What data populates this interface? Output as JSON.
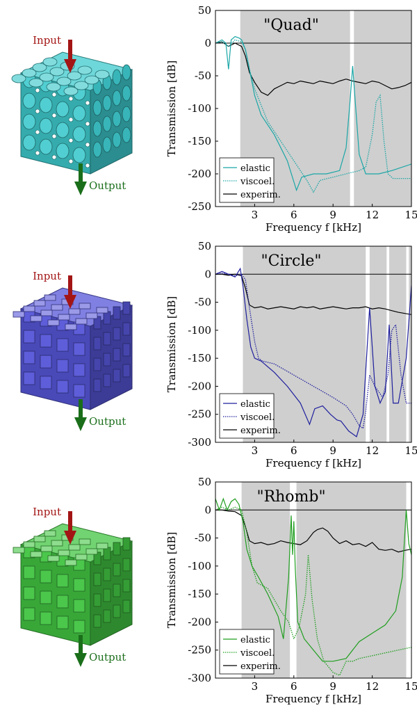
{
  "panels": [
    {
      "lattice": {
        "input_label": "Input",
        "output_label": "Output",
        "color": "#3ec9cc",
        "shape": "spheres"
      },
      "chart_data": {
        "type": "line",
        "title": "\"Quad\"",
        "xlabel": "Frequency f [kHz]",
        "ylabel": "Transmission [dB]",
        "xlim": [
          0,
          15
        ],
        "ylim": [
          -250,
          50
        ],
        "xticks": [
          3,
          6,
          9,
          12,
          15
        ],
        "yticks": [
          50,
          0,
          -50,
          -100,
          -150,
          -200,
          -250
        ],
        "legend_position": "bottom-left",
        "band_regions": [
          [
            1.9,
            10.3
          ],
          [
            10.6,
            15
          ]
        ],
        "series": [
          {
            "name": "elastic",
            "style": "solid",
            "color": "#1aa6a6",
            "x": [
              0,
              0.5,
              0.8,
              1.0,
              1.2,
              1.5,
              1.8,
              2.0,
              2.3,
              2.6,
              3.0,
              3.5,
              4.5,
              5.5,
              6.2,
              6.6,
              7.5,
              8.5,
              9.5,
              10.0,
              10.3,
              10.5,
              10.7,
              11.0,
              11.5,
              12.5,
              13.5,
              15
            ],
            "y": [
              0,
              5,
              0,
              -40,
              5,
              10,
              8,
              5,
              -10,
              -40,
              -80,
              -110,
              -140,
              -180,
              -225,
              -205,
              -200,
              -200,
              -195,
              -160,
              -90,
              -35,
              -90,
              -170,
              -200,
              -200,
              -195,
              -185
            ]
          },
          {
            "name": "viscoel.",
            "style": "dotted",
            "color": "#1aa6a6",
            "x": [
              0,
              0.5,
              1.0,
              1.5,
              2.0,
              2.3,
              2.6,
              3.0,
              4.0,
              5.0,
              6.0,
              7.0,
              7.5,
              8.0,
              9.0,
              10.0,
              11.0,
              11.5,
              12.0,
              12.3,
              12.6,
              12.9,
              13.2,
              13.6,
              14.5,
              15
            ],
            "y": [
              0,
              2,
              -5,
              5,
              2,
              -10,
              -40,
              -70,
              -120,
              -150,
              -180,
              -210,
              -228,
              -210,
              -205,
              -200,
              -195,
              -190,
              -140,
              -90,
              -80,
              -150,
              -200,
              -207,
              -207,
              -207
            ]
          },
          {
            "name": "experim.",
            "style": "solid",
            "color": "#000000",
            "x": [
              0,
              0.5,
              1.0,
              1.5,
              2.0,
              2.3,
              2.6,
              3.0,
              3.5,
              4.0,
              4.5,
              5.0,
              5.5,
              6.0,
              6.5,
              7.0,
              7.5,
              8.0,
              8.5,
              9.0,
              9.5,
              10.0,
              10.5,
              11.0,
              11.5,
              12.0,
              12.5,
              13.0,
              13.5,
              14.0,
              14.5,
              15
            ],
            "y": [
              0,
              2,
              -5,
              0,
              -5,
              -20,
              -45,
              -60,
              -75,
              -80,
              -70,
              -65,
              -60,
              -62,
              -58,
              -60,
              -62,
              -58,
              -60,
              -62,
              -58,
              -55,
              -58,
              -60,
              -62,
              -58,
              -60,
              -65,
              -70,
              -68,
              -65,
              -60
            ]
          }
        ]
      }
    },
    {
      "lattice": {
        "input_label": "Input",
        "output_label": "Output",
        "color": "#5656d8",
        "shape": "cubes"
      },
      "chart_data": {
        "type": "line",
        "title": "\"Circle\"",
        "xlabel": "Frequency f [kHz]",
        "ylabel": "Transmission [dB]",
        "xlim": [
          0,
          15
        ],
        "ylim": [
          -300,
          50
        ],
        "xticks": [
          3,
          6,
          9,
          12,
          15
        ],
        "yticks": [
          50,
          0,
          -50,
          -100,
          -150,
          -200,
          -250,
          -300
        ],
        "legend_position": "bottom-left",
        "band_regions": [
          [
            2.1,
            11.5
          ],
          [
            11.8,
            13.1
          ],
          [
            13.3,
            14.6
          ],
          [
            14.8,
            15
          ]
        ],
        "series": [
          {
            "name": "elastic",
            "style": "solid",
            "color": "#1f1f9e",
            "x": [
              0,
              0.5,
              1.0,
              1.5,
              1.9,
              2.1,
              2.4,
              2.7,
              3.0,
              3.5,
              4.5,
              5.5,
              6.5,
              7.2,
              7.6,
              8.2,
              8.8,
              9.3,
              9.6,
              10.2,
              10.8,
              11.3,
              11.8,
              12.2,
              12.6,
              13.0,
              13.3,
              13.6,
              14.0,
              14.6,
              15
            ],
            "y": [
              0,
              5,
              0,
              -5,
              10,
              -20,
              -80,
              -130,
              -150,
              -155,
              -175,
              -200,
              -230,
              -268,
              -240,
              -235,
              -250,
              -260,
              -262,
              -280,
              -290,
              -250,
              -60,
              -200,
              -230,
              -210,
              -90,
              -230,
              -230,
              -150,
              -20
            ]
          },
          {
            "name": "viscoel.",
            "style": "dotted",
            "color": "#1f1f9e",
            "x": [
              0,
              0.5,
              1.0,
              1.5,
              2.0,
              2.3,
              2.6,
              3.0,
              3.3,
              3.6,
              4.5,
              6.0,
              7.5,
              9.0,
              10.0,
              10.5,
              11.0,
              11.3,
              11.5,
              11.8,
              12.2,
              12.8,
              13.2,
              13.5,
              13.8,
              14.2,
              14.6,
              15
            ],
            "y": [
              0,
              2,
              0,
              -3,
              0,
              -10,
              -60,
              -120,
              -150,
              -155,
              -160,
              -180,
              -200,
              -220,
              -235,
              -250,
              -270,
              -275,
              -245,
              -180,
              -200,
              -220,
              -180,
              -100,
              -90,
              -180,
              -230,
              -230
            ]
          },
          {
            "name": "experim.",
            "style": "solid",
            "color": "#000000",
            "x": [
              0,
              0.5,
              1.0,
              1.5,
              2.0,
              2.3,
              2.6,
              3.0,
              3.5,
              4.0,
              4.5,
              5.0,
              5.5,
              6.0,
              6.5,
              7.0,
              7.5,
              8.0,
              8.5,
              9.0,
              9.5,
              10.0,
              10.5,
              11.0,
              11.5,
              12.0,
              12.5,
              13.0,
              13.5,
              14.0,
              14.5,
              15
            ],
            "y": [
              0,
              0,
              -2,
              0,
              -3,
              -25,
              -55,
              -60,
              -58,
              -62,
              -60,
              -58,
              -60,
              -62,
              -58,
              -60,
              -58,
              -62,
              -60,
              -58,
              -60,
              -62,
              -60,
              -60,
              -58,
              -62,
              -60,
              -62,
              -65,
              -68,
              -70,
              -72
            ]
          }
        ]
      }
    },
    {
      "lattice": {
        "input_label": "Input",
        "output_label": "Output",
        "color": "#42c442",
        "shape": "cubes"
      },
      "chart_data": {
        "type": "line",
        "title": "\"Rhomb\"",
        "xlabel": "Frequency f [kHz]",
        "ylabel": "Transmission [dB]",
        "xlim": [
          0,
          15
        ],
        "ylim": [
          -300,
          50
        ],
        "xticks": [
          3,
          6,
          9,
          12,
          15
        ],
        "yticks": [
          50,
          0,
          -50,
          -100,
          -150,
          -200,
          -250,
          -300
        ],
        "legend_position": "bottom-left",
        "band_regions": [
          [
            2.0,
            5.7
          ],
          [
            6.2,
            14.6
          ]
        ],
        "series": [
          {
            "name": "elastic",
            "style": "solid",
            "color": "#1f9e1f",
            "x": [
              0,
              0.3,
              0.6,
              0.9,
              1.2,
              1.5,
              1.8,
              2.1,
              2.4,
              2.8,
              3.3,
              4.0,
              4.8,
              5.2,
              5.6,
              5.8,
              5.9,
              6.0,
              6.1,
              6.3,
              6.8,
              7.5,
              8.2,
              9.0,
              10.0,
              11.0,
              12.0,
              13.0,
              13.8,
              14.3,
              14.6,
              14.8,
              15
            ],
            "y": [
              20,
              0,
              20,
              0,
              15,
              20,
              10,
              -20,
              -70,
              -100,
              -120,
              -150,
              -190,
              -230,
              -120,
              -10,
              -80,
              -20,
              -100,
              -200,
              -230,
              -250,
              -270,
              -270,
              -265,
              -235,
              -220,
              -205,
              -180,
              -120,
              0,
              -60,
              -80
            ]
          },
          {
            "name": "viscoel.",
            "style": "dotted",
            "color": "#1f9e1f",
            "x": [
              0,
              0.5,
              1.0,
              1.5,
              2.0,
              2.4,
              2.8,
              3.2,
              4.0,
              5.0,
              5.6,
              6.0,
              6.4,
              6.9,
              7.1,
              7.4,
              7.8,
              8.3,
              9.0,
              9.5,
              10.0,
              10.5,
              11.0,
              12.0,
              13.0,
              14.0,
              15
            ],
            "y": [
              0,
              5,
              0,
              5,
              0,
              -40,
              -100,
              -130,
              -140,
              -180,
              -200,
              -230,
              -210,
              -150,
              -80,
              -160,
              -230,
              -270,
              -290,
              -295,
              -270,
              -270,
              -265,
              -260,
              -255,
              -250,
              -245
            ]
          },
          {
            "name": "experim.",
            "style": "solid",
            "color": "#000000",
            "x": [
              0,
              0.5,
              1.0,
              1.5,
              2.0,
              2.3,
              2.6,
              3.0,
              3.5,
              4.0,
              4.5,
              5.0,
              5.5,
              6.0,
              6.5,
              7.0,
              7.5,
              7.8,
              8.2,
              8.6,
              9.0,
              9.5,
              10.0,
              10.5,
              11.0,
              11.5,
              12.0,
              12.5,
              13.0,
              13.5,
              14.0,
              14.5,
              15
            ],
            "y": [
              0,
              0,
              -2,
              -3,
              -10,
              -30,
              -55,
              -60,
              -58,
              -62,
              -60,
              -55,
              -58,
              -60,
              -62,
              -55,
              -40,
              -35,
              -32,
              -38,
              -50,
              -60,
              -55,
              -62,
              -60,
              -65,
              -58,
              -70,
              -72,
              -70,
              -75,
              -72,
              -70
            ]
          }
        ]
      }
    }
  ]
}
